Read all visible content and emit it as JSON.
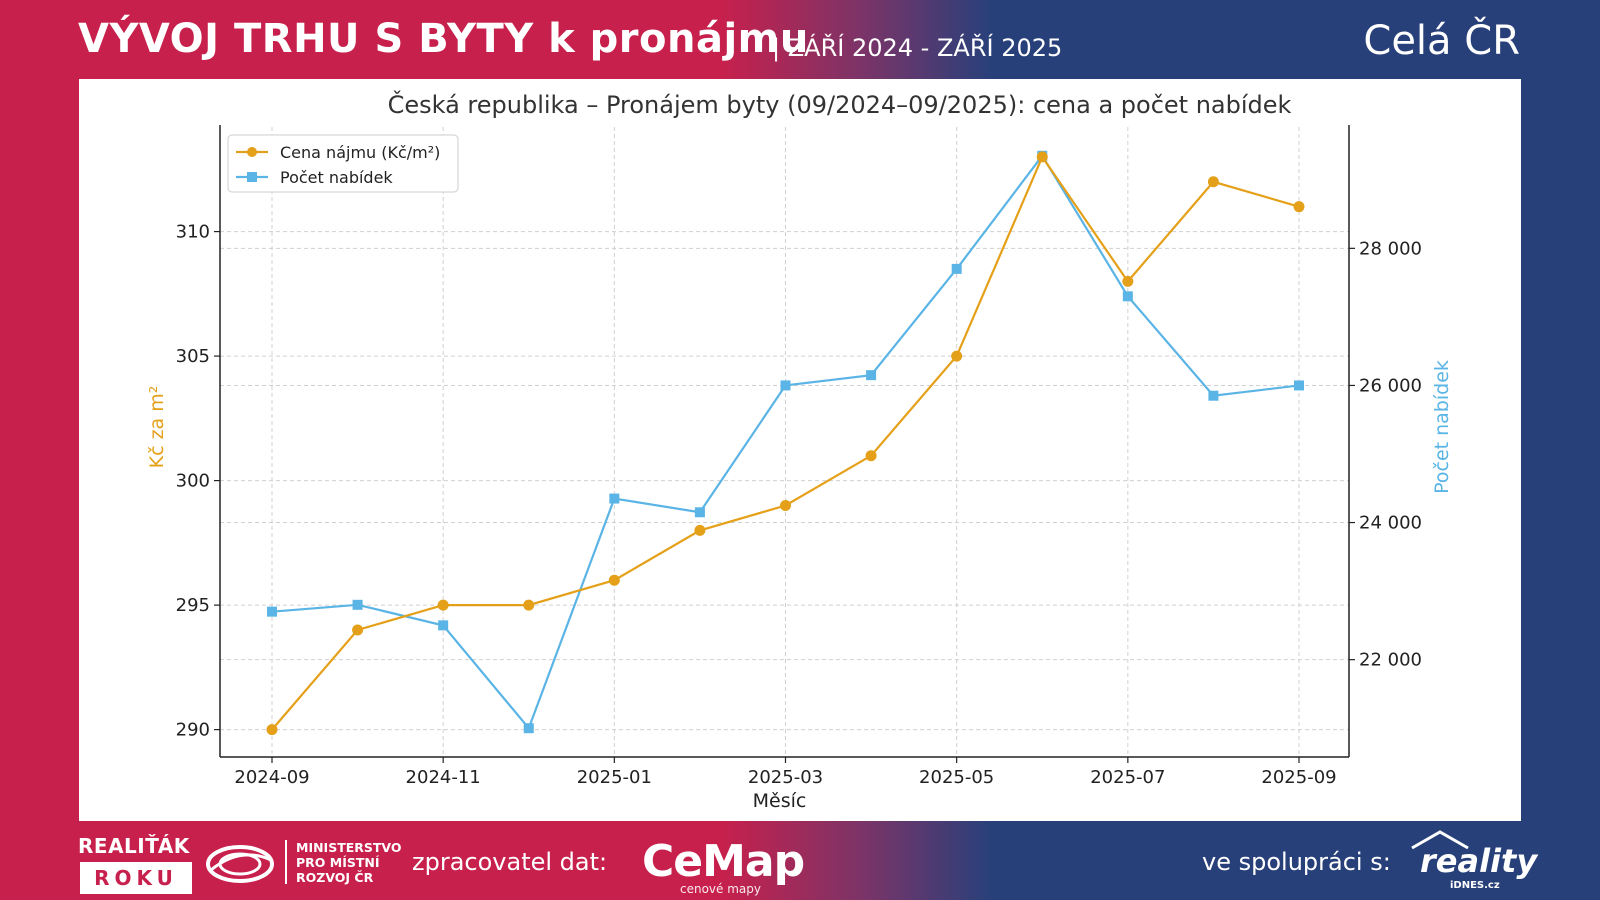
{
  "header": {
    "title": "VÝVOJ TRHU S BYTY k pronájmu",
    "period": "| ZÁŘÍ 2024 - ZÁŘÍ 2025",
    "region": "Celá ČR"
  },
  "footer": {
    "award_top": "REALIŤÁK",
    "award_box": "ROKU",
    "ministry_lines": [
      "MINISTERSTVO",
      "PRO MÍSTNÍ",
      "ROZVOJ ČR"
    ],
    "processor_label": "zpracovatel dat:",
    "processor_name": "CeMap",
    "processor_sub": "cenové mapy",
    "partner_label": "ve spolupráci s:",
    "partner_name": "reality",
    "partner_sub": "iDNES.cz"
  },
  "colors": {
    "price": "#e5a019",
    "offers": "#5ab4e5",
    "accent_red": "#c8204c",
    "accent_blue": "#28407a"
  },
  "chart_data": {
    "type": "line",
    "title": "Česká republika – Pronájem byty (09/2024–09/2025): cena a počet nabídek",
    "xlabel": "Měsíc",
    "ylabel_left": "Kč za m²",
    "ylabel_right": "Počet nabídek",
    "x": [
      "2024-09",
      "2024-10",
      "2024-11",
      "2024-12",
      "2025-01",
      "2025-02",
      "2025-03",
      "2025-04",
      "2025-05",
      "2025-06",
      "2025-07",
      "2025-08",
      "2025-09"
    ],
    "x_tick_labels": [
      "2024-09",
      "2024-11",
      "2025-01",
      "2025-03",
      "2025-05",
      "2025-07",
      "2025-09"
    ],
    "y_left_ticks": [
      "290",
      "295",
      "300",
      "305",
      "310"
    ],
    "y_right_ticks": [
      "22 000",
      "24 000",
      "26 000",
      "28 000"
    ],
    "ylim_left": [
      288.9,
      314.2
    ],
    "ylim_right": [
      20580,
      29770
    ],
    "grid": true,
    "legend_position": "top-left",
    "series": [
      {
        "name": "Cena nájmu (Kč/m²)",
        "axis": "left",
        "marker": "circle",
        "values": [
          290,
          294,
          295,
          295,
          296,
          298,
          299,
          301,
          305,
          313,
          308,
          312,
          311
        ]
      },
      {
        "name": "Počet nabídek",
        "axis": "right",
        "marker": "square",
        "values": [
          22700,
          22800,
          22500,
          21000,
          24350,
          24150,
          26000,
          26150,
          27700,
          29350,
          27300,
          25850,
          26000
        ]
      }
    ]
  }
}
